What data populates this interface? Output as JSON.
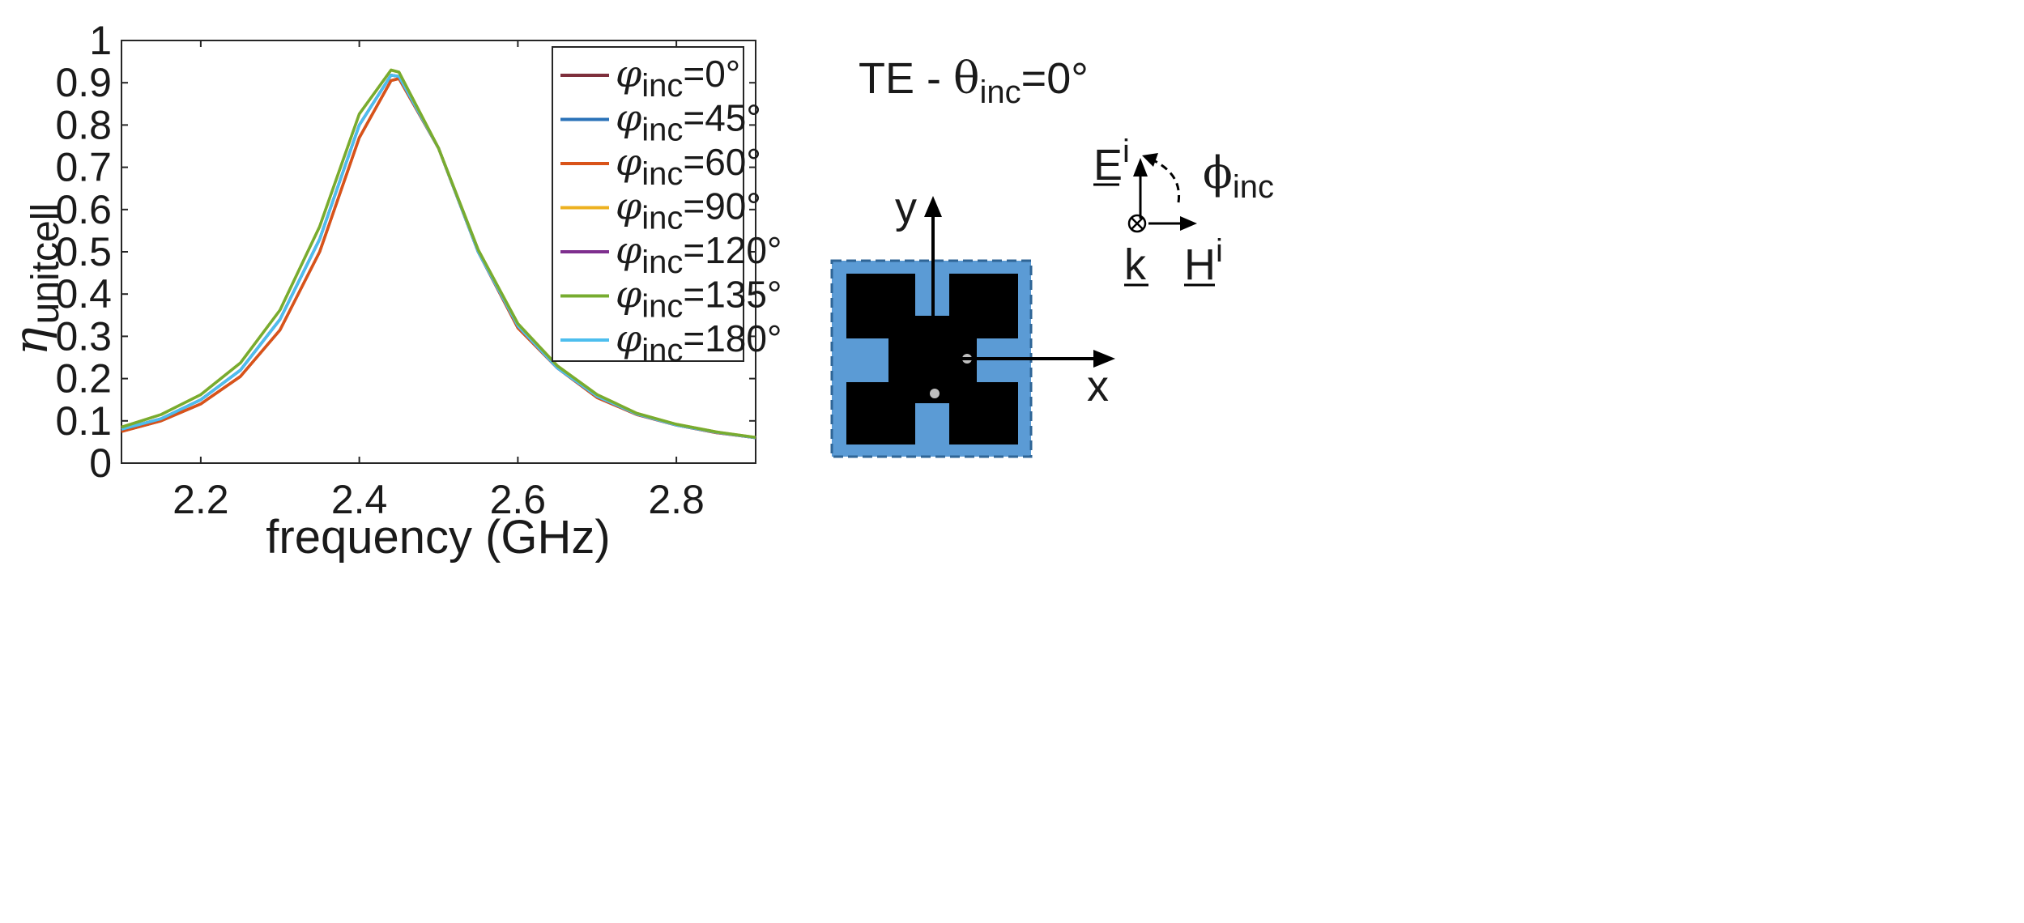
{
  "chart_data": {
    "type": "line",
    "xlabel": "frequency (GHz)",
    "ylabel_symbol": "η",
    "ylabel_subscript": "unitcell",
    "xlim": [
      2.1,
      2.9
    ],
    "ylim": [
      0,
      1
    ],
    "xticks": [
      "2.2",
      "2.4",
      "2.6",
      "2.8"
    ],
    "xtick_values": [
      2.2,
      2.4,
      2.6,
      2.8
    ],
    "yticks": [
      "0",
      "0.1",
      "0.2",
      "0.3",
      "0.4",
      "0.5",
      "0.6",
      "0.7",
      "0.8",
      "0.9",
      "1"
    ],
    "ytick_values": [
      0,
      0.1,
      0.2,
      0.3,
      0.4,
      0.5,
      0.6,
      0.7,
      0.8,
      0.9,
      1.0
    ],
    "legend_position": "top-right",
    "legend_symbol": "φ",
    "legend_subscript": "inc",
    "x": [
      2.1,
      2.15,
      2.2,
      2.25,
      2.3,
      2.35,
      2.4,
      2.44,
      2.45,
      2.5,
      2.55,
      2.6,
      2.65,
      2.7,
      2.75,
      2.8,
      2.85,
      2.9
    ],
    "series": [
      {
        "name": "=0°",
        "color": "#7e2f3c",
        "values": [
          0.075,
          0.1,
          0.14,
          0.205,
          0.315,
          0.5,
          0.77,
          0.905,
          0.91,
          0.745,
          0.5,
          0.32,
          0.225,
          0.155,
          0.115,
          0.09,
          0.072,
          0.06
        ]
      },
      {
        "name": "=45°",
        "color": "#2a72b8",
        "values": [
          0.08,
          0.105,
          0.15,
          0.22,
          0.34,
          0.53,
          0.8,
          0.918,
          0.915,
          0.745,
          0.5,
          0.325,
          0.225,
          0.158,
          0.116,
          0.09,
          0.073,
          0.06
        ]
      },
      {
        "name": "=60°",
        "color": "#d95319",
        "values": [
          0.075,
          0.1,
          0.14,
          0.205,
          0.315,
          0.5,
          0.77,
          0.905,
          0.91,
          0.745,
          0.5,
          0.32,
          0.225,
          0.155,
          0.115,
          0.09,
          0.072,
          0.06
        ]
      },
      {
        "name": "=90°",
        "color": "#edb120",
        "values": [
          0.085,
          0.115,
          0.162,
          0.237,
          0.362,
          0.56,
          0.826,
          0.93,
          0.925,
          0.745,
          0.505,
          0.33,
          0.23,
          0.162,
          0.118,
          0.092,
          0.074,
          0.061
        ]
      },
      {
        "name": "=120°",
        "color": "#7e2f8e",
        "values": [
          0.08,
          0.105,
          0.15,
          0.22,
          0.34,
          0.53,
          0.8,
          0.918,
          0.915,
          0.745,
          0.5,
          0.325,
          0.225,
          0.158,
          0.116,
          0.09,
          0.073,
          0.06
        ]
      },
      {
        "name": "=135°",
        "color": "#77ac30",
        "values": [
          0.085,
          0.115,
          0.162,
          0.237,
          0.362,
          0.56,
          0.826,
          0.93,
          0.925,
          0.745,
          0.505,
          0.33,
          0.23,
          0.162,
          0.118,
          0.092,
          0.074,
          0.061
        ]
      },
      {
        "name": "=180°",
        "color": "#4dbeee",
        "values": [
          0.08,
          0.105,
          0.15,
          0.22,
          0.34,
          0.53,
          0.8,
          0.918,
          0.915,
          0.745,
          0.5,
          0.325,
          0.225,
          0.158,
          0.116,
          0.09,
          0.073,
          0.06
        ]
      }
    ]
  },
  "diagram": {
    "title_prefix": "TE  - ",
    "theta_symbol": "θ",
    "theta_subscript": "inc",
    "theta_value": "=0°",
    "axis_y": "y",
    "axis_x": "x",
    "e_field": "E",
    "e_superscript": "i",
    "h_field": "H",
    "h_superscript": "i",
    "k_label": "k",
    "phi_symbol": "ϕ",
    "phi_subscript": "inc",
    "patch_color": "#5b9bd5",
    "metal_color": "#000000"
  }
}
